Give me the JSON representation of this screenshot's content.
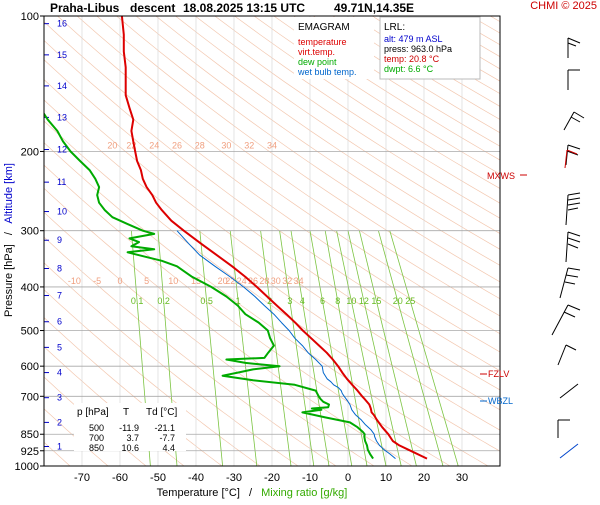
{
  "header": {
    "station": "Praha-Libus",
    "mode": "descent",
    "datetime": "18.08.2025 13:15 UTC",
    "coords": "49.71N,14.35E",
    "copyright": "CHMI © 2025"
  },
  "legend": {
    "title": "EMAGRAM",
    "items": [
      {
        "label": "temperature",
        "color": "#dd0000"
      },
      {
        "label": "virt.temp.",
        "color": "#dd0000"
      },
      {
        "label": "dew point",
        "color": "#00aa00"
      },
      {
        "label": "wet bulb temp.",
        "color": "#0066cc"
      }
    ]
  },
  "lrl": {
    "title": "LRL:",
    "alt": "alt: 479 m ASL",
    "press": "press: 963.0 hPa",
    "temp": "temp: 20.8 °C",
    "dwpt": "dwpt: 6.6 °C"
  },
  "levels_table": {
    "headers": [
      "p [hPa]",
      "T",
      "Td [°C]"
    ],
    "rows": [
      [
        "500",
        "-11.9",
        "-21.1"
      ],
      [
        "700",
        "3.7",
        "-7.7"
      ],
      [
        "850",
        "10.6",
        "4.4"
      ]
    ]
  },
  "labels": {
    "mxws": "MXWS",
    "fzlv": "FZLV",
    "wbzl": "WBZL"
  },
  "chart_data": {
    "type": "line",
    "title": "",
    "xlabel": "Temperature [°C]",
    "xlabel_sep": "/",
    "xlabel2": "Mixing ratio [g/kg]",
    "ylabel": "Pressure [hPa]",
    "ylabel_sep": "/",
    "ylabel2": "Altitude [km]",
    "xlim": [
      -80,
      40
    ],
    "ylim": [
      1000,
      100
    ],
    "y_scale": "log",
    "x_ticks": [
      -70,
      -60,
      -50,
      -40,
      -30,
      -20,
      -10,
      0,
      10,
      20,
      30
    ],
    "p_ticks": [
      100,
      200,
      300,
      400,
      500,
      600,
      700,
      850,
      925,
      1000
    ],
    "alt_ticks": [
      {
        "km": 1,
        "p": 905
      },
      {
        "km": 2,
        "p": 800
      },
      {
        "km": 3,
        "p": 705
      },
      {
        "km": 4,
        "p": 620
      },
      {
        "km": 5,
        "p": 545
      },
      {
        "km": 6,
        "p": 478
      },
      {
        "km": 7,
        "p": 418
      },
      {
        "km": 8,
        "p": 364
      },
      {
        "km": 9,
        "p": 315
      },
      {
        "km": 10,
        "p": 272
      },
      {
        "km": 11,
        "p": 234
      },
      {
        "km": 12,
        "p": 198
      },
      {
        "km": 13,
        "p": 168
      },
      {
        "km": 14,
        "p": 143
      },
      {
        "km": 15,
        "p": 122
      },
      {
        "km": 16,
        "p": 104
      }
    ],
    "mixing_ratio_lines": [
      {
        "label": "0.1",
        "t1000": -52,
        "t300": -57
      },
      {
        "label": "0.2",
        "t1000": -45,
        "t300": -50
      },
      {
        "label": "0.5",
        "t1000": -33,
        "t300": -39
      },
      {
        "label": "1",
        "t1000": -24,
        "t300": -31
      },
      {
        "label": "2",
        "t1000": -15,
        "t300": -23
      },
      {
        "label": "3",
        "t1000": -9,
        "t300": -18
      },
      {
        "label": "4",
        "t1000": -5,
        "t300": -15
      },
      {
        "label": "6",
        "t1000": 1,
        "t300": -10
      },
      {
        "label": "8",
        "t1000": 5,
        "t300": -6
      },
      {
        "label": "10",
        "t1000": 10,
        "t300": -3
      },
      {
        "label": "12",
        "t1000": 14,
        "t300": 0
      },
      {
        "label": "15",
        "t1000": 18,
        "t300": 3
      },
      {
        "label": "20",
        "t1000": 25,
        "t300": 8
      },
      {
        "label": "25",
        "t1000": 29,
        "t300": 11
      }
    ],
    "mr_label_p": 430,
    "theta_labels_p200": [
      "20",
      "22",
      "24",
      "26",
      "28",
      "30",
      "32",
      "34"
    ],
    "theta_labels_p200_t": [
      -62,
      -57,
      -51,
      -45,
      -39,
      -32,
      -26,
      -20
    ],
    "theta_labels_p400": [
      "-10",
      "-5",
      "0",
      "5",
      "10",
      "15",
      "20",
      "22",
      "24",
      "26",
      "28",
      "30",
      "32",
      "34"
    ],
    "theta_labels_p400_t": [
      -72,
      -66,
      -60,
      -53,
      -46,
      -40,
      -33,
      -31,
      -28,
      -25,
      -22,
      -19,
      -16,
      -13
    ],
    "series": [
      {
        "name": "temperature",
        "color": "#dd0000",
        "points": [
          [
            963,
            20.8
          ],
          [
            925,
            16.5
          ],
          [
            900,
            13.5
          ],
          [
            880,
            11.8
          ],
          [
            850,
            10.6
          ],
          [
            820,
            9.0
          ],
          [
            790,
            7.6
          ],
          [
            770,
            6.8
          ],
          [
            760,
            6.2
          ],
          [
            745,
            6.0
          ],
          [
            730,
            5.6
          ],
          [
            710,
            4.4
          ],
          [
            700,
            3.7
          ],
          [
            680,
            2.5
          ],
          [
            660,
            1.1
          ],
          [
            640,
            -0.3
          ],
          [
            620,
            -1.5
          ],
          [
            600,
            -2.6
          ],
          [
            580,
            -4.0
          ],
          [
            560,
            -5.6
          ],
          [
            540,
            -7.6
          ],
          [
            520,
            -9.7
          ],
          [
            500,
            -11.9
          ],
          [
            480,
            -13.9
          ],
          [
            460,
            -16.2
          ],
          [
            440,
            -18.7
          ],
          [
            420,
            -21.3
          ],
          [
            400,
            -24.0
          ],
          [
            380,
            -27.0
          ],
          [
            360,
            -30.5
          ],
          [
            340,
            -34.5
          ],
          [
            320,
            -38.8
          ],
          [
            300,
            -43.2
          ],
          [
            285,
            -46.5
          ],
          [
            270,
            -49.0
          ],
          [
            260,
            -50.5
          ],
          [
            250,
            -51.5
          ],
          [
            240,
            -53.0
          ],
          [
            230,
            -54.0
          ],
          [
            220,
            -54.5
          ],
          [
            210,
            -55.5
          ],
          [
            200,
            -56.0
          ],
          [
            190,
            -56.5
          ],
          [
            180,
            -57.0
          ],
          [
            170,
            -56.5
          ],
          [
            160,
            -57.5
          ],
          [
            150,
            -58.5
          ],
          [
            140,
            -58.5
          ],
          [
            130,
            -58.5
          ],
          [
            120,
            -59.0
          ],
          [
            110,
            -59.0
          ],
          [
            100,
            -59.5
          ]
        ]
      },
      {
        "name": "dew point",
        "color": "#00aa00",
        "points": [
          [
            963,
            6.6
          ],
          [
            940,
            5.8
          ],
          [
            920,
            5.2
          ],
          [
            900,
            5.0
          ],
          [
            880,
            4.5
          ],
          [
            860,
            4.3
          ],
          [
            850,
            4.4
          ],
          [
            840,
            3.9
          ],
          [
            820,
            2.5
          ],
          [
            800,
            0.5
          ],
          [
            780,
            -6.0
          ],
          [
            760,
            -12.0
          ],
          [
            750,
            -7.0
          ],
          [
            745,
            -9.5
          ],
          [
            740,
            -5.2
          ],
          [
            730,
            -5.0
          ],
          [
            720,
            -6.5
          ],
          [
            710,
            -7.2
          ],
          [
            700,
            -7.7
          ],
          [
            680,
            -8.5
          ],
          [
            660,
            -14.0
          ],
          [
            645,
            -25.0
          ],
          [
            630,
            -33.0
          ],
          [
            620,
            -29.0
          ],
          [
            610,
            -25.0
          ],
          [
            600,
            -18.0
          ],
          [
            590,
            -27.0
          ],
          [
            580,
            -32.0
          ],
          [
            575,
            -22.0
          ],
          [
            560,
            -21.0
          ],
          [
            540,
            -19.5
          ],
          [
            520,
            -20.5
          ],
          [
            500,
            -21.1
          ],
          [
            480,
            -23.5
          ],
          [
            460,
            -27.0
          ],
          [
            440,
            -29.0
          ],
          [
            420,
            -32.0
          ],
          [
            400,
            -36.0
          ],
          [
            380,
            -41.0
          ],
          [
            360,
            -45.0
          ],
          [
            350,
            -49.0
          ],
          [
            340,
            -55.0
          ],
          [
            335,
            -58.0
          ],
          [
            330,
            -51.0
          ],
          [
            325,
            -57.0
          ],
          [
            318,
            -55.0
          ],
          [
            312,
            -57.5
          ],
          [
            305,
            -51.0
          ],
          [
            300,
            -54.0
          ],
          [
            290,
            -58.0
          ],
          [
            280,
            -62.0
          ],
          [
            270,
            -64.0
          ],
          [
            260,
            -65.5
          ],
          [
            250,
            -66.0
          ],
          [
            240,
            -65.5
          ],
          [
            230,
            -66.5
          ],
          [
            220,
            -68.0
          ],
          [
            210,
            -70.5
          ],
          [
            200,
            -73.0
          ],
          [
            190,
            -75.0
          ],
          [
            180,
            -76.5
          ],
          [
            170,
            -79.0
          ],
          [
            160,
            -81.0
          ],
          [
            155,
            -84.0
          ]
        ]
      },
      {
        "name": "wet bulb temp.",
        "color": "#0066cc",
        "points": [
          [
            963,
            12.5
          ],
          [
            940,
            11.0
          ],
          [
            920,
            9.5
          ],
          [
            900,
            8.3
          ],
          [
            880,
            7.5
          ],
          [
            860,
            7.0
          ],
          [
            850,
            6.9
          ],
          [
            830,
            6.0
          ],
          [
            810,
            4.6
          ],
          [
            790,
            3.5
          ],
          [
            770,
            2.0
          ],
          [
            750,
            1.0
          ],
          [
            730,
            0.5
          ],
          [
            715,
            -0.2
          ],
          [
            700,
            -1.0
          ],
          [
            690,
            -1.5
          ],
          [
            680,
            -1.8
          ],
          [
            670,
            -2.5
          ],
          [
            660,
            -3.8
          ],
          [
            650,
            -4.5
          ],
          [
            640,
            -5.5
          ],
          [
            620,
            -6.5
          ],
          [
            600,
            -6.8
          ],
          [
            580,
            -8.5
          ],
          [
            560,
            -10.5
          ],
          [
            540,
            -12.0
          ],
          [
            520,
            -14.0
          ],
          [
            500,
            -15.5
          ],
          [
            480,
            -17.5
          ],
          [
            460,
            -19.5
          ],
          [
            440,
            -22.0
          ],
          [
            420,
            -24.5
          ],
          [
            400,
            -27.5
          ],
          [
            380,
            -31.0
          ],
          [
            360,
            -35.0
          ],
          [
            340,
            -39.0
          ],
          [
            320,
            -42.0
          ],
          [
            300,
            -45.0
          ]
        ]
      }
    ],
    "grid": true
  }
}
